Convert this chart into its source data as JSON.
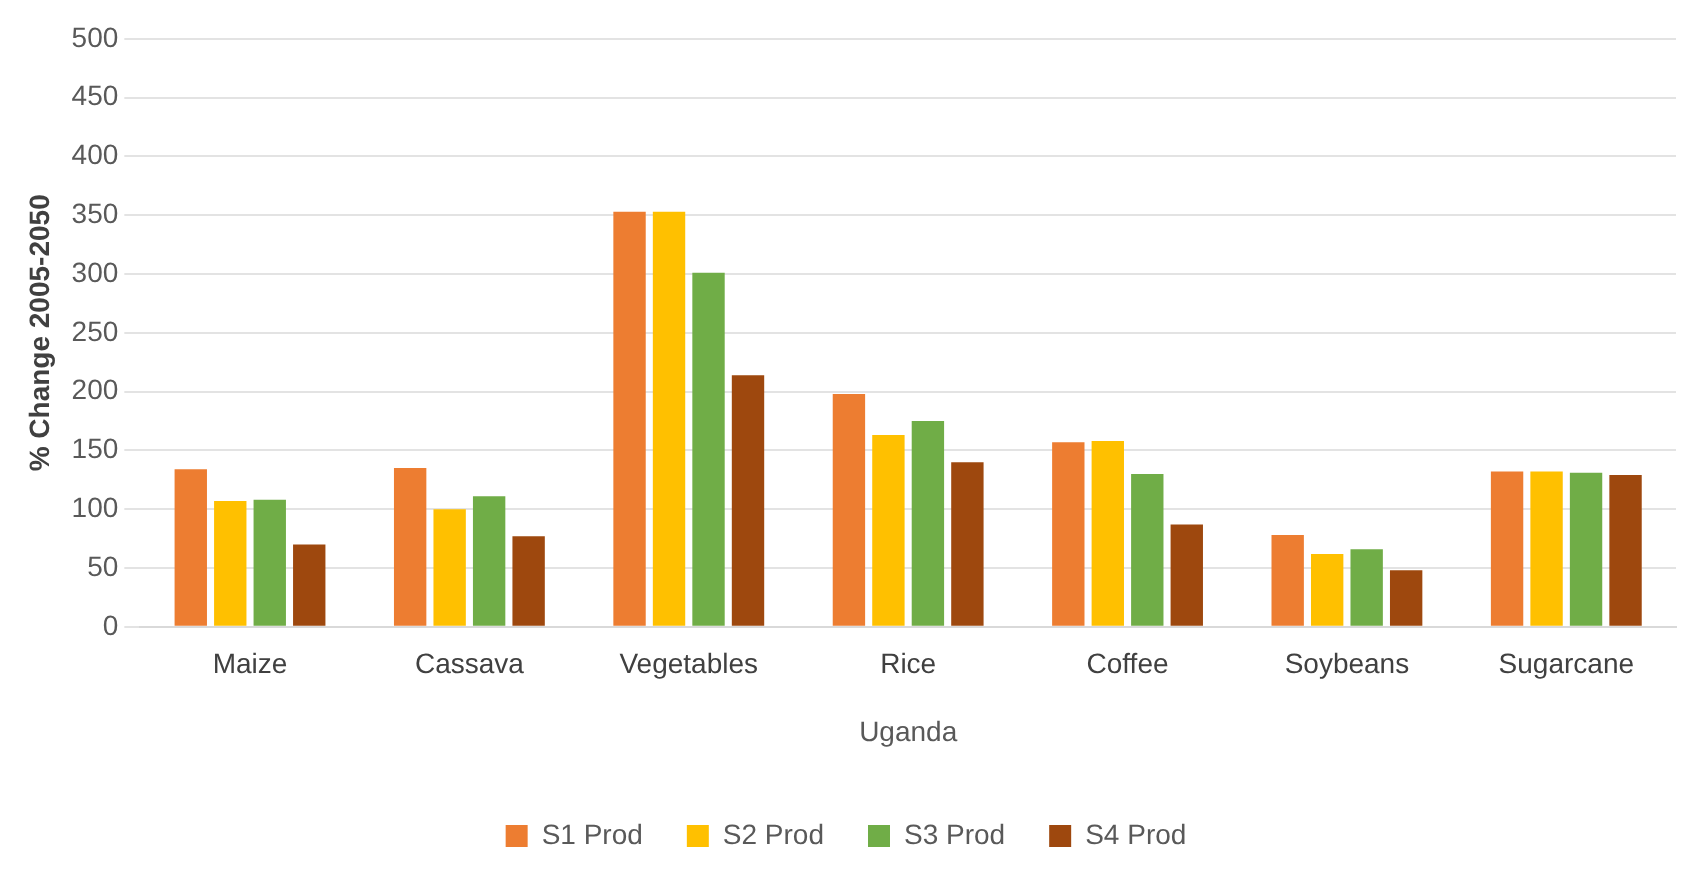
{
  "chart_data": {
    "type": "bar",
    "xlabel": "Uganda",
    "ylabel": "% Change 2005-2050",
    "categories": [
      "Maize",
      "Cassava",
      "Vegetables",
      "Rice",
      "Coffee",
      "Soybeans",
      "Sugarcane"
    ],
    "series": [
      {
        "name": "S1 Prod",
        "color": "#ed7d31",
        "values": [
          134,
          135,
          353,
          198,
          157,
          78,
          132
        ]
      },
      {
        "name": "S2 Prod",
        "color": "#ffc000",
        "values": [
          107,
          100,
          353,
          163,
          158,
          62,
          132
        ]
      },
      {
        "name": "S3 Prod",
        "color": "#70ad47",
        "values": [
          108,
          111,
          301,
          175,
          130,
          66,
          131
        ]
      },
      {
        "name": "S4 Prod",
        "color": "#9e480e",
        "values": [
          70,
          77,
          214,
          140,
          87,
          48,
          129
        ]
      }
    ],
    "ylim": [
      0,
      500
    ],
    "yticks": [
      0,
      50,
      100,
      150,
      200,
      250,
      300,
      350,
      400,
      450,
      500
    ],
    "grid": "y",
    "legend": "bottom"
  }
}
